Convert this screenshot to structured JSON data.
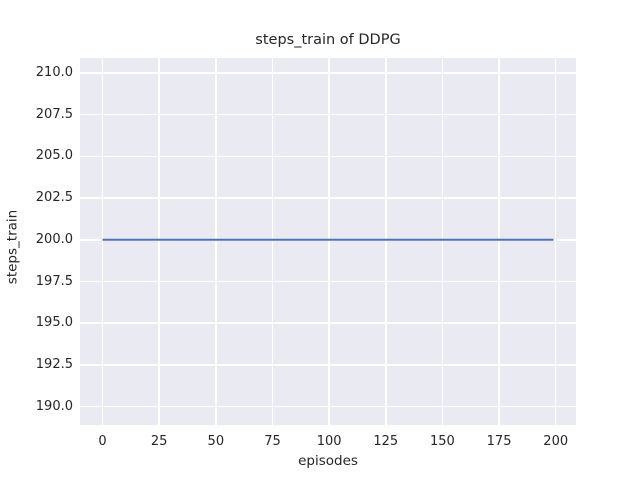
{
  "figure": {
    "background": "#ffffff",
    "text_color": "#262626"
  },
  "chart_data": {
    "type": "line",
    "title": "steps_train of DDPG",
    "xlabel": "episodes",
    "ylabel": "steps_train",
    "xlim": [
      -9.95,
      208.95
    ],
    "ylim": [
      188.9,
      210.9
    ],
    "xticks": [
      0,
      25,
      50,
      75,
      100,
      125,
      150,
      175,
      200
    ],
    "xtick_labels": [
      "0",
      "25",
      "50",
      "75",
      "100",
      "125",
      "150",
      "175",
      "200"
    ],
    "yticks": [
      190.0,
      192.5,
      195.0,
      197.5,
      200.0,
      202.5,
      205.0,
      207.5,
      210.0
    ],
    "ytick_labels": [
      "190.0",
      "192.5",
      "195.0",
      "197.5",
      "200.0",
      "202.5",
      "205.0",
      "207.5",
      "210.0"
    ],
    "grid": true,
    "legend": false,
    "plot_background": "#eaeaf2",
    "gridline_color": "#ffffff",
    "series": [
      {
        "name": "steps_train",
        "color": "#4c72b0",
        "x": [
          0,
          199
        ],
        "y": [
          200,
          200
        ]
      }
    ]
  }
}
